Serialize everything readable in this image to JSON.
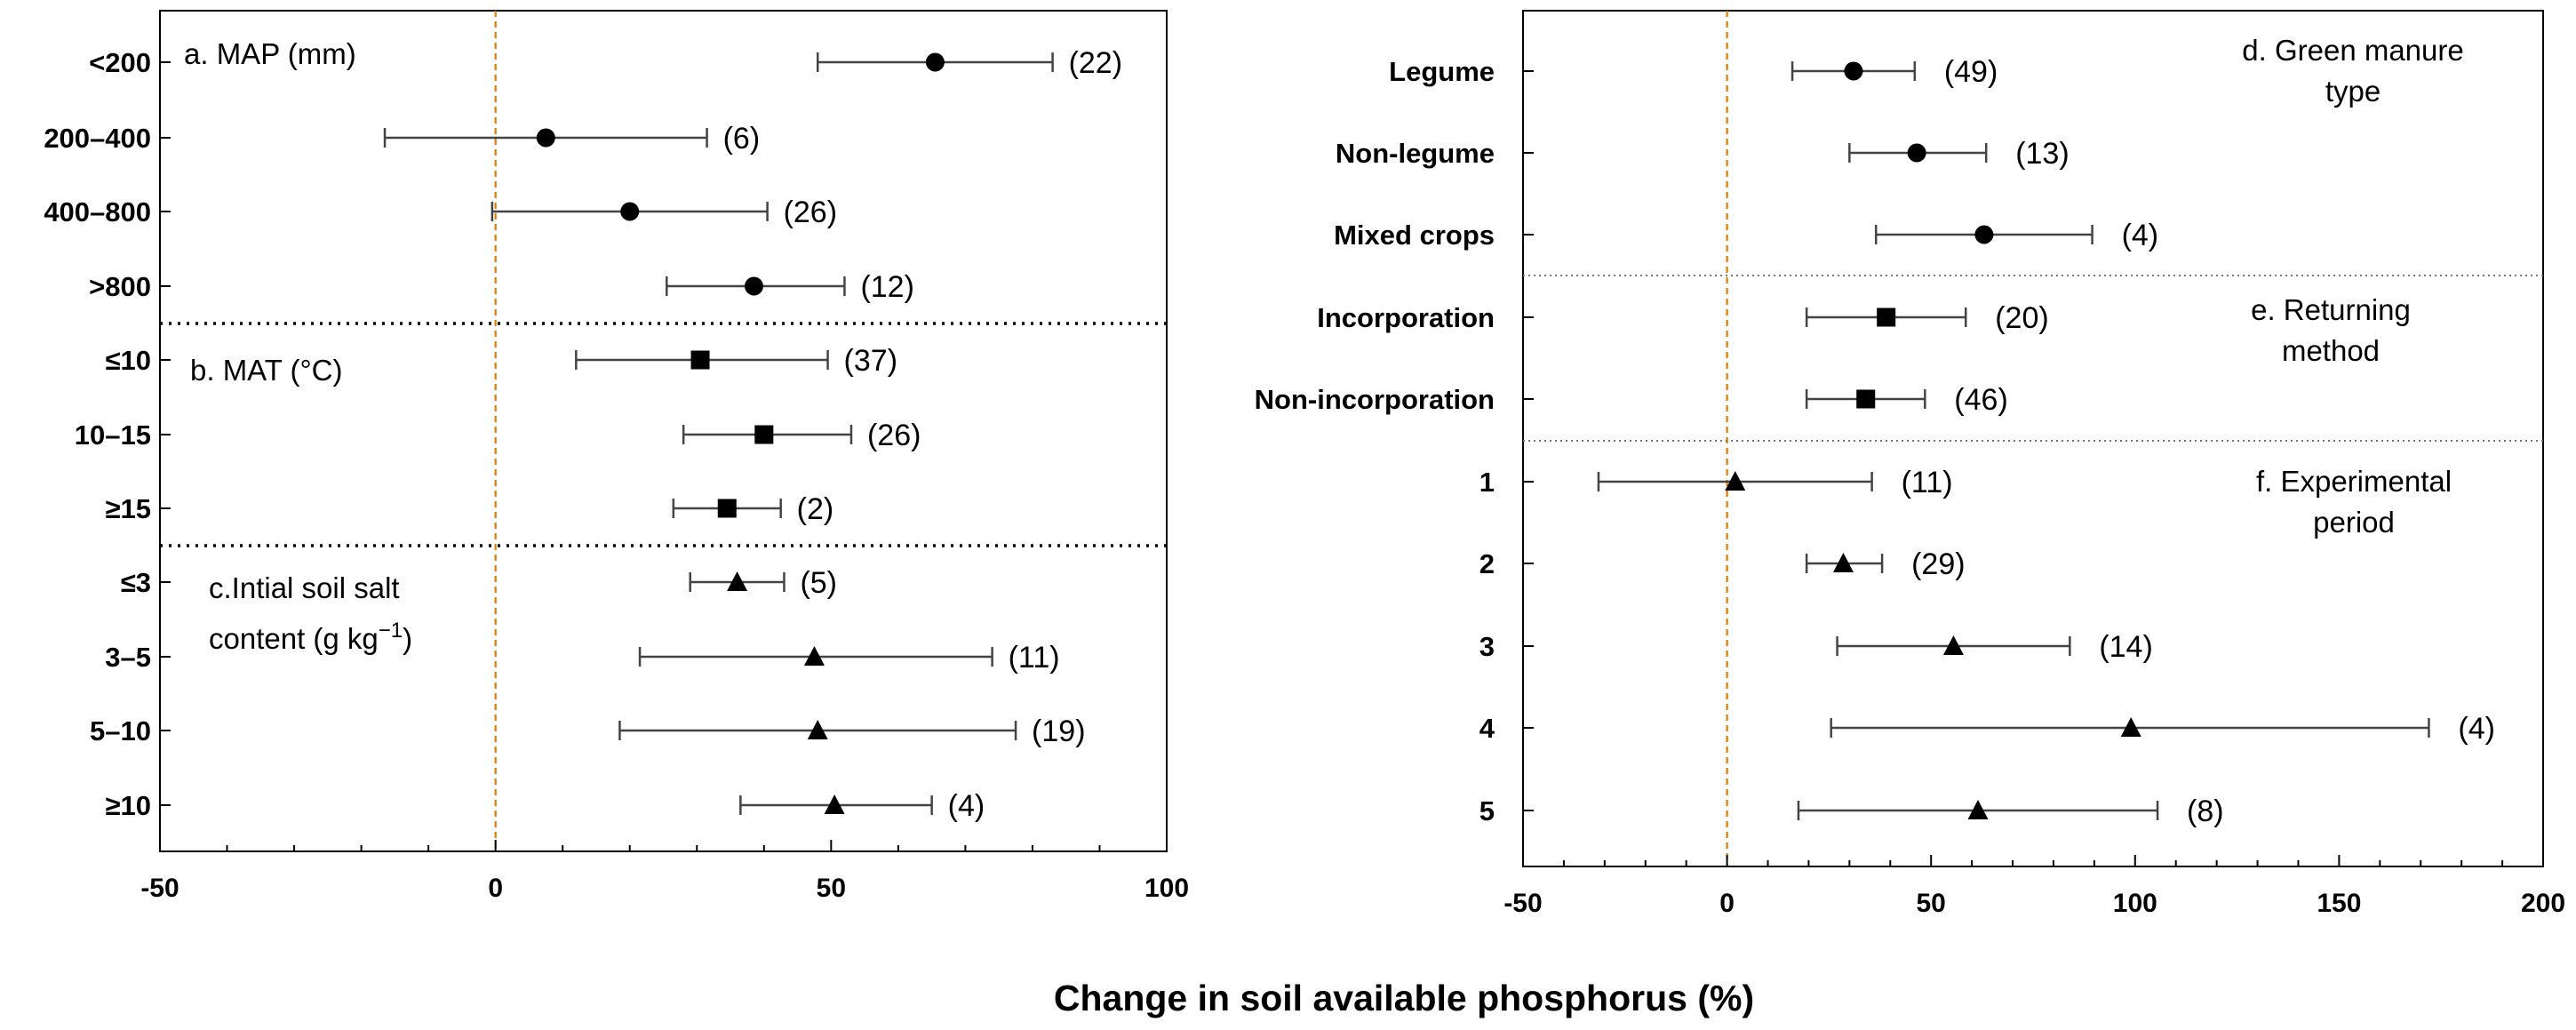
{
  "figure": {
    "x_axis_title": "Change in soil available  phosphorus  (%)",
    "ref_line_color": "#E07B00",
    "marker_color": "#000000"
  },
  "chart_data": [
    {
      "type": "forest",
      "panel": "left",
      "xlim": [
        -50,
        100
      ],
      "xticks": [
        -50,
        0,
        50,
        100
      ],
      "xtick_labels": [
        "-50",
        "0",
        "50",
        "100"
      ],
      "reference_x": 0,
      "sections": [
        {
          "title_lines": [
            "a. MAP (mm)"
          ],
          "title_superscript": "",
          "marker": "circle",
          "rows": [
            {
              "label": "<200",
              "mean": 65.5,
              "lo": 48,
              "hi": 83,
              "n": "(22)"
            },
            {
              "label": "200–400",
              "mean": 7.5,
              "lo": -16.5,
              "hi": 31.5,
              "n": "(6)"
            },
            {
              "label": "400–800",
              "mean": 20,
              "lo": -0.5,
              "hi": 40.5,
              "n": "(26)"
            },
            {
              "label": ">800",
              "mean": 38.5,
              "lo": 25.5,
              "hi": 52,
              "n": "(12)"
            }
          ]
        },
        {
          "title_lines": [
            "b. MAT (°C)"
          ],
          "title_superscript": "",
          "marker": "square",
          "rows": [
            {
              "label": "≤10",
              "mean": 30.5,
              "lo": 12,
              "hi": 49.5,
              "n": "(37)"
            },
            {
              "label": "10–15",
              "mean": 40,
              "lo": 28,
              "hi": 53,
              "n": "(26)"
            },
            {
              "label": "≥15",
              "mean": 34.5,
              "lo": 26.5,
              "hi": 42.5,
              "n": "(2)"
            }
          ]
        },
        {
          "title_lines": [
            "c.Intial soil salt",
            "content  (g kg"
          ],
          "title_superscript": "−1",
          "title_suffix": ")",
          "marker": "triangle",
          "rows": [
            {
              "label": "≤3",
              "mean": 36,
              "lo": 29,
              "hi": 43,
              "n": "(5)"
            },
            {
              "label": "3–5",
              "mean": 47.5,
              "lo": 21.5,
              "hi": 74,
              "n": "(11)"
            },
            {
              "label": "5–10",
              "mean": 48,
              "lo": 18.5,
              "hi": 77.5,
              "n": "(19)"
            },
            {
              "label": "≥10",
              "mean": 50.5,
              "lo": 36.5,
              "hi": 65,
              "n": "(4)"
            }
          ]
        }
      ]
    },
    {
      "type": "forest",
      "panel": "right",
      "xlim": [
        -50,
        200
      ],
      "xticks": [
        -50,
        0,
        50,
        100,
        150,
        200
      ],
      "xtick_labels": [
        "-50",
        "0",
        "50",
        "100",
        "150",
        "200"
      ],
      "reference_x": 0,
      "sections": [
        {
          "title_lines": [
            "d. Green manure",
            "type"
          ],
          "marker": "circle",
          "rows": [
            {
              "label": "Legume",
              "mean": 31,
              "lo": 16,
              "hi": 46,
              "n": "(49)"
            },
            {
              "label": "Non-legume",
              "mean": 46.5,
              "lo": 30,
              "hi": 63.5,
              "n": "(13)"
            },
            {
              "label": "Mixed crops",
              "mean": 63,
              "lo": 36.5,
              "hi": 89.5,
              "n": "(4)"
            }
          ]
        },
        {
          "title_lines": [
            "e. Returning",
            "method"
          ],
          "marker": "square",
          "rows": [
            {
              "label": "Incorporation",
              "mean": 39,
              "lo": 19.5,
              "hi": 58.5,
              "n": "(20)"
            },
            {
              "label": "Non-incorporation",
              "mean": 34,
              "lo": 19.5,
              "hi": 48.5,
              "n": "(46)"
            }
          ]
        },
        {
          "title_lines": [
            "f. Experimental",
            "period"
          ],
          "marker": "triangle",
          "rows": [
            {
              "label": "1",
              "mean": 2,
              "lo": -31.5,
              "hi": 35.5,
              "n": "(11)"
            },
            {
              "label": "2",
              "mean": 28.5,
              "lo": 19.5,
              "hi": 38,
              "n": "(29)"
            },
            {
              "label": "3",
              "mean": 55.5,
              "lo": 27,
              "hi": 84,
              "n": "(14)"
            },
            {
              "label": "4",
              "mean": 99,
              "lo": 25.5,
              "hi": 172,
              "n": "(4)"
            },
            {
              "label": "5",
              "mean": 61.5,
              "lo": 17.5,
              "hi": 105.5,
              "n": "(8)"
            }
          ]
        }
      ]
    }
  ]
}
